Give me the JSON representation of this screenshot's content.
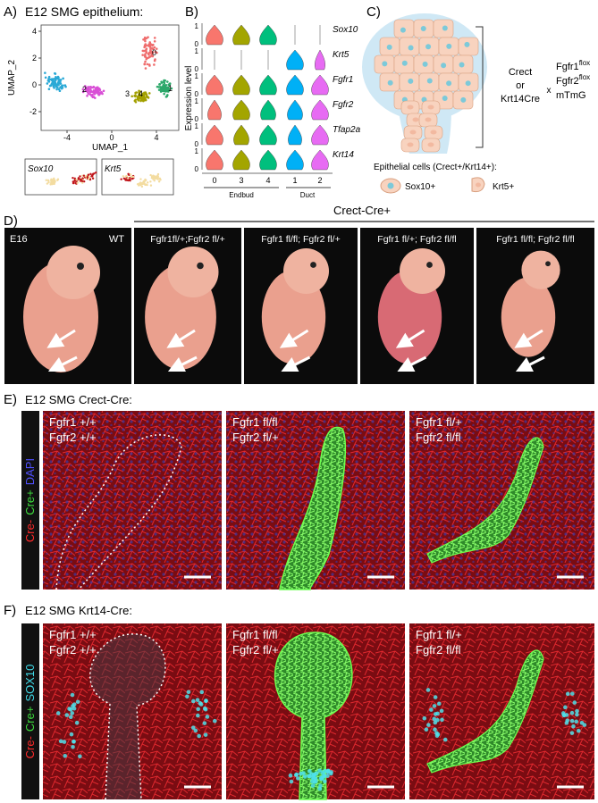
{
  "panel_a": {
    "label": "A)",
    "title": "E12 SMG epithelium:",
    "x_label": "UMAP_1",
    "y_label": "UMAP_2",
    "xticks": [
      -4,
      0,
      4
    ],
    "yticks": [
      4,
      2,
      0,
      -2
    ],
    "cluster_labels": [
      "0",
      "2",
      "3",
      "4",
      "1"
    ],
    "insets": [
      "Sox10",
      "Krt5"
    ]
  },
  "panel_b": {
    "label": "B)",
    "y_label": "Expression level",
    "genes": [
      "Sox10",
      "Krt5",
      "Fgfr1",
      "Fgfr2",
      "Tfap2a",
      "Krt14"
    ],
    "yticks": [
      1,
      0
    ],
    "clusters": [
      "0",
      "3",
      "4",
      "1",
      "2"
    ],
    "groups": [
      "Endbud",
      "Duct"
    ]
  },
  "panel_c": {
    "label": "C)",
    "driver": [
      "Crect",
      "or",
      "Krt14Cre"
    ],
    "cross": "x",
    "alleles": [
      {
        "gene": "Fgfr1",
        "sup": "flox"
      },
      {
        "gene": "Fgfr2",
        "sup": "flox"
      },
      {
        "gene": "mTmG",
        "sup": ""
      }
    ],
    "legend_title": "Epithelial cells (Crect+/Krt14+):",
    "legend": [
      "Sox10+",
      "Krt5+"
    ]
  },
  "panel_d": {
    "label": "D)",
    "header": "Crect-Cre+",
    "stage": "E16",
    "wt": "WT",
    "genotypes": [
      "Fgfr1fl/+;Fgfr2 fl/+",
      "Fgfr1 fl/fl; Fgfr2 fl/+",
      "Fgfr1 fl/+; Fgfr2 fl/fl",
      "Fgfr1 fl/fl; Fgfr2 fl/fl"
    ]
  },
  "panel_e": {
    "label": "E)",
    "title": "E12 SMG Crect-Cre:",
    "side": [
      "Cre-",
      "Cre+",
      "DAPI"
    ],
    "genotypes": [
      [
        "Fgfr1 +/+",
        "Fgfr2 +/+"
      ],
      [
        "Fgfr1 fl/fl",
        "Fgfr2 fl/+"
      ],
      [
        "Fgfr1 fl/+",
        "Fgfr2 fl/fl"
      ]
    ]
  },
  "panel_f": {
    "label": "F)",
    "title": "E12 SMG Krt14-Cre:",
    "side": [
      "Cre-",
      "Cre+",
      "SOX10"
    ],
    "genotypes": [
      [
        "Fgfr1 +/+",
        "Fgfr2 +/+"
      ],
      [
        "Fgfr1 fl/fl",
        "Fgfr2 fl/+"
      ],
      [
        "Fgfr1 fl/+",
        "Fgfr2 fl/fl"
      ]
    ]
  }
}
